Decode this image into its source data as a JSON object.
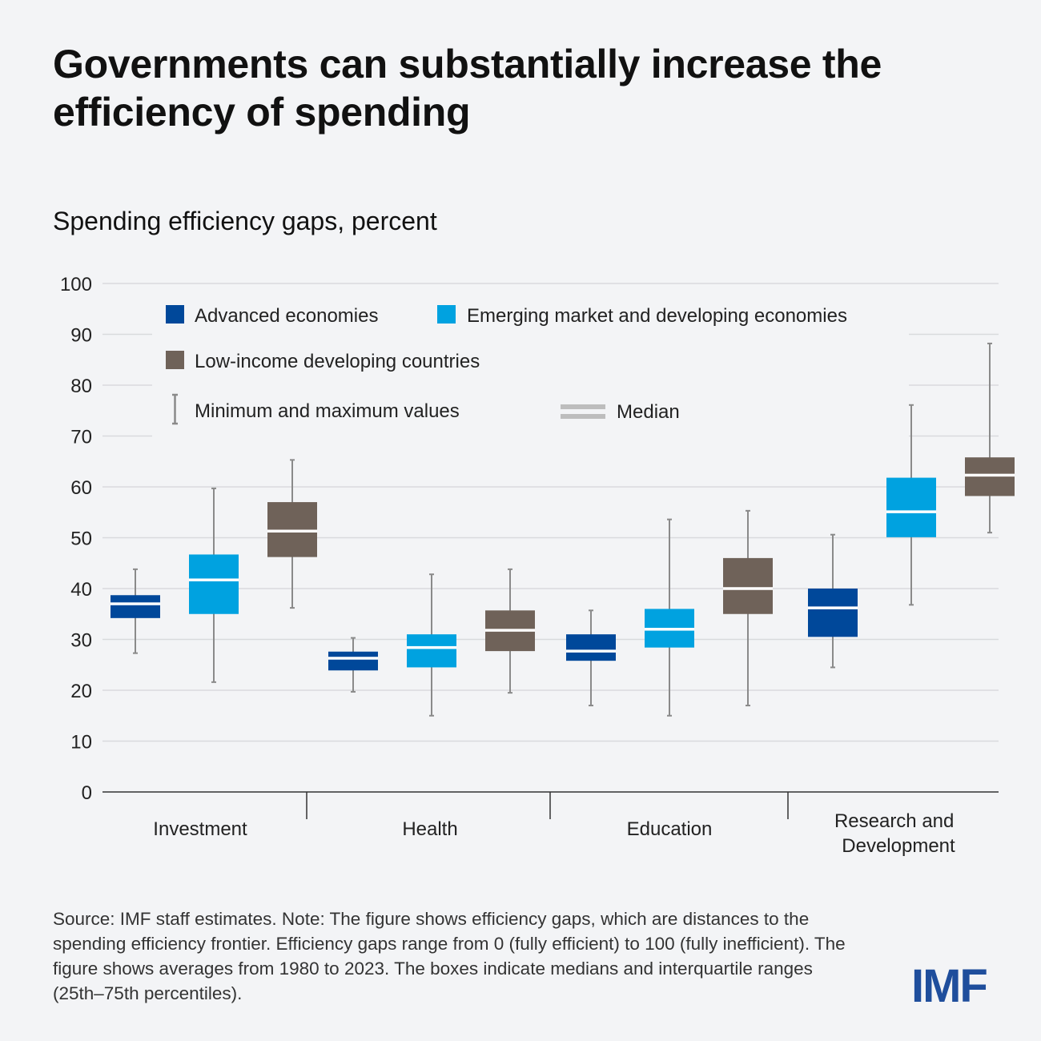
{
  "title": "Governments can substantially increase the efficiency of spending",
  "subtitle": "Spending efficiency gaps, percent",
  "note": "Source: IMF staff estimates. Note: The figure shows efficiency gaps, which are distances to the spending efficiency frontier. Efficiency gaps range from 0 (fully efficient) to 100 (fully inefficient). The figure shows averages from 1980 to 2023. The boxes indicate medians and interquartile ranges (25th–75th percentiles).",
  "logo_text": "IMF",
  "legend": {
    "advanced": "Advanced economies",
    "emerging": "Emerging market and developing economies",
    "lowincome": "Low-income developing countries",
    "minmax": "Minimum and maximum values",
    "median": "Median"
  },
  "colors": {
    "advanced": "#00489a",
    "emerging": "#00a2e0",
    "lowincome": "#6f6259",
    "whisker": "#8a8a8a",
    "median": "#ffffff",
    "grid": "#d9dadd",
    "logo": "#1f4e9c"
  },
  "chart_data": {
    "type": "box",
    "title": "Governments can substantially increase the efficiency of spending",
    "ylabel": "Spending efficiency gaps, percent",
    "ylim": [
      0,
      100
    ],
    "yticks": [
      0,
      10,
      20,
      30,
      40,
      50,
      60,
      70,
      80,
      90,
      100
    ],
    "categories": [
      "Investment",
      "Health",
      "Education",
      "Research and Development"
    ],
    "series": [
      {
        "name": "Advanced economies",
        "key": "advanced",
        "boxes": [
          {
            "min": 27.3,
            "q1": 34.2,
            "median": 37,
            "q3": 38.7,
            "max": 43.8
          },
          {
            "min": 19.7,
            "q1": 23.9,
            "median": 26.3,
            "q3": 27.6,
            "max": 30.3
          },
          {
            "min": 17,
            "q1": 25.8,
            "median": 27.7,
            "q3": 31,
            "max": 35.7
          },
          {
            "min": 24.5,
            "q1": 30.5,
            "median": 36.2,
            "q3": 40,
            "max": 50.6
          }
        ]
      },
      {
        "name": "Emerging market and developing economies",
        "key": "emerging",
        "boxes": [
          {
            "min": 21.6,
            "q1": 35,
            "median": 41.7,
            "q3": 46.7,
            "max": 59.7
          },
          {
            "min": 15,
            "q1": 24.5,
            "median": 28.4,
            "q3": 31,
            "max": 42.8
          },
          {
            "min": 15,
            "q1": 28.4,
            "median": 32,
            "q3": 36,
            "max": 53.6
          },
          {
            "min": 36.8,
            "q1": 50.1,
            "median": 55.1,
            "q3": 61.8,
            "max": 76.1
          }
        ]
      },
      {
        "name": "Low-income developing countries",
        "key": "lowincome",
        "boxes": [
          {
            "min": 36.2,
            "q1": 46.2,
            "median": 51.3,
            "q3": 57,
            "max": 65.3
          },
          {
            "min": 19.5,
            "q1": 27.7,
            "median": 31.8,
            "q3": 35.7,
            "max": 43.8
          },
          {
            "min": 17,
            "q1": 35,
            "median": 40,
            "q3": 46,
            "max": 55.3
          },
          {
            "min": 51,
            "q1": 58.2,
            "median": 62.3,
            "q3": 65.8,
            "max": 88.2
          }
        ]
      }
    ]
  }
}
